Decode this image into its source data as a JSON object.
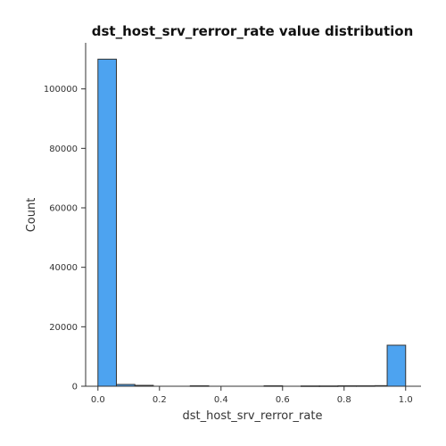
{
  "chart_data": {
    "type": "bar",
    "title": "dst_host_srv_rerror_rate value distribution",
    "xlabel": "dst_host_srv_rerror_rate",
    "ylabel": "Count",
    "xlim": [
      -0.04,
      1.05
    ],
    "ylim": [
      0,
      115500
    ],
    "x_ticks": [
      0.0,
      0.2,
      0.4,
      0.6,
      0.8,
      1.0
    ],
    "x_tick_labels": [
      "0.0",
      "0.2",
      "0.4",
      "0.6",
      "0.8",
      "1.0"
    ],
    "y_ticks": [
      0,
      20000,
      40000,
      60000,
      80000,
      100000
    ],
    "y_tick_labels": [
      "0",
      "20000",
      "40000",
      "60000",
      "80000",
      "100000"
    ],
    "bins": [
      {
        "x0": 0.0,
        "x1": 0.06,
        "count": 110000
      },
      {
        "x0": 0.06,
        "x1": 0.12,
        "count": 600
      },
      {
        "x0": 0.12,
        "x1": 0.18,
        "count": 300
      },
      {
        "x0": 0.18,
        "x1": 0.24,
        "count": 0
      },
      {
        "x0": 0.24,
        "x1": 0.3,
        "count": 0
      },
      {
        "x0": 0.3,
        "x1": 0.36,
        "count": 150
      },
      {
        "x0": 0.36,
        "x1": 0.42,
        "count": 0
      },
      {
        "x0": 0.42,
        "x1": 0.48,
        "count": 0
      },
      {
        "x0": 0.48,
        "x1": 0.54,
        "count": 0
      },
      {
        "x0": 0.54,
        "x1": 0.6,
        "count": 150
      },
      {
        "x0": 0.6,
        "x1": 0.66,
        "count": 0
      },
      {
        "x0": 0.66,
        "x1": 0.72,
        "count": 100
      },
      {
        "x0": 0.72,
        "x1": 0.78,
        "count": 100
      },
      {
        "x0": 0.78,
        "x1": 0.84,
        "count": 150
      },
      {
        "x0": 0.84,
        "x1": 0.9,
        "count": 150
      },
      {
        "x0": 0.9,
        "x1": 0.94,
        "count": 200
      },
      {
        "x0": 0.94,
        "x1": 1.0,
        "count": 13800
      }
    ],
    "bar_color": "#4da3f0",
    "edge_color": "#333333",
    "grid": false,
    "legend": "none"
  }
}
